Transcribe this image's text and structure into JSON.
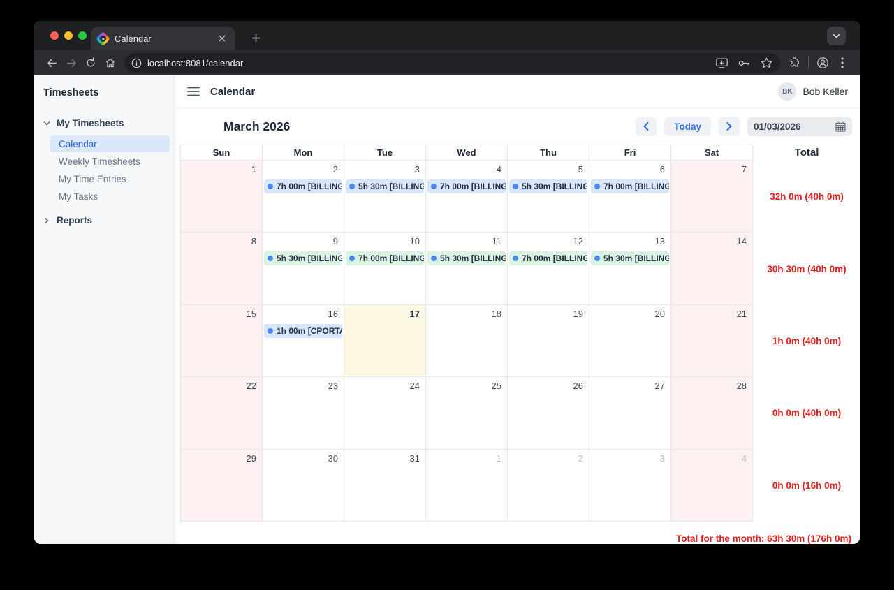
{
  "browser": {
    "tab_title": "Calendar",
    "url": "localhost:8081/calendar"
  },
  "sidebar": {
    "title": "Timesheets",
    "sections": [
      {
        "label": "My Timesheets",
        "expanded": true,
        "items": [
          {
            "label": "Calendar",
            "selected": true
          },
          {
            "label": "Weekly Timesheets",
            "selected": false
          },
          {
            "label": "My Time Entries",
            "selected": false
          },
          {
            "label": "My Tasks",
            "selected": false
          }
        ]
      },
      {
        "label": "Reports",
        "expanded": false,
        "items": []
      }
    ]
  },
  "header": {
    "title": "Calendar",
    "user_initials": "BK",
    "user_name": "Bob Keller"
  },
  "cal_toolbar": {
    "month_title": "March 2026",
    "today_label": "Today",
    "date_value": "01/03/2026"
  },
  "calendar": {
    "day_headers": [
      "Sun",
      "Mon",
      "Tue",
      "Wed",
      "Thu",
      "Fri",
      "Sat"
    ],
    "total_header": "Total",
    "weeks": [
      {
        "total": "32h 0m (40h 0m)",
        "days": [
          {
            "num": "1"
          },
          {
            "num": "2",
            "event": {
              "label": "7h 00m [BILLING",
              "color": "blue"
            }
          },
          {
            "num": "3",
            "event": {
              "label": "5h 30m [BILLING",
              "color": "blue"
            }
          },
          {
            "num": "4",
            "event": {
              "label": "7h 00m [BILLING",
              "color": "blue"
            }
          },
          {
            "num": "5",
            "event": {
              "label": "5h 30m [BILLING",
              "color": "blue"
            }
          },
          {
            "num": "6",
            "event": {
              "label": "7h 00m [BILLING",
              "color": "blue"
            }
          },
          {
            "num": "7"
          }
        ]
      },
      {
        "total": "30h 30m (40h 0m)",
        "days": [
          {
            "num": "8"
          },
          {
            "num": "9",
            "event": {
              "label": "5h 30m [BILLING",
              "color": "green"
            }
          },
          {
            "num": "10",
            "event": {
              "label": "7h 00m [BILLING",
              "color": "green"
            }
          },
          {
            "num": "11",
            "event": {
              "label": "5h 30m [BILLING",
              "color": "green"
            }
          },
          {
            "num": "12",
            "event": {
              "label": "7h 00m [BILLING",
              "color": "green"
            }
          },
          {
            "num": "13",
            "event": {
              "label": "5h 30m [BILLING",
              "color": "green"
            }
          },
          {
            "num": "14"
          }
        ]
      },
      {
        "total": "1h 0m (40h 0m)",
        "days": [
          {
            "num": "15"
          },
          {
            "num": "16",
            "event": {
              "label": "1h 00m [CPORTA",
              "color": "blue"
            }
          },
          {
            "num": "17",
            "today": true
          },
          {
            "num": "18"
          },
          {
            "num": "19"
          },
          {
            "num": "20"
          },
          {
            "num": "21"
          }
        ]
      },
      {
        "total": "0h 0m (40h 0m)",
        "days": [
          {
            "num": "22"
          },
          {
            "num": "23"
          },
          {
            "num": "24"
          },
          {
            "num": "25"
          },
          {
            "num": "26"
          },
          {
            "num": "27"
          },
          {
            "num": "28"
          }
        ]
      },
      {
        "total": "0h 0m (16h 0m)",
        "days": [
          {
            "num": "29"
          },
          {
            "num": "30"
          },
          {
            "num": "31"
          },
          {
            "num": "1",
            "other": true
          },
          {
            "num": "2",
            "other": true
          },
          {
            "num": "3",
            "other": true
          },
          {
            "num": "4",
            "other": true
          }
        ]
      }
    ],
    "month_total": "Total for the month: 63h 30m (176h 0m)"
  },
  "colors": {
    "accent_blue": "#2f6bec",
    "chip_blue": "#d8e6fc",
    "chip_green": "#d9f2e2",
    "dot_blue": "#4a86f0",
    "total_red": "#e02020",
    "weekend_bg": "#fcf1f0",
    "today_bg": "#fcf8e3"
  }
}
